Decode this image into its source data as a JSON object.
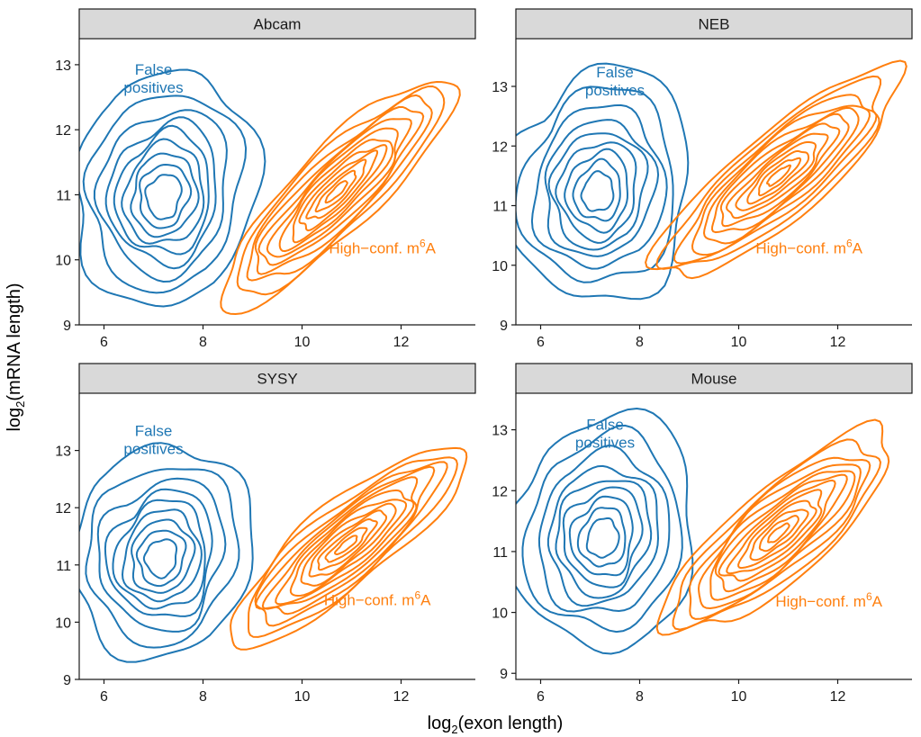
{
  "chart_data": {
    "type": "contour",
    "title": "",
    "xlabel_base": "log",
    "xlabel_sub": "2",
    "xlabel_rest": "(exon length)",
    "ylabel_base": "log",
    "ylabel_sub": "2",
    "ylabel_rest": "(mRNA length)",
    "colors": {
      "false_positives": "#1f77b4",
      "high_conf": "#ff7f0e"
    },
    "legend": {
      "placement": "in-panel annotations"
    },
    "panels": [
      {
        "name": "Abcam",
        "xlim": [
          5.5,
          13.5
        ],
        "ylim": [
          9,
          13.4
        ],
        "xticks": [
          6,
          8,
          10,
          12
        ],
        "yticks": [
          9,
          10,
          11,
          12,
          13
        ],
        "fp_label": [
          "False",
          "positives"
        ],
        "fp_label_pos": [
          7.0,
          12.85
        ],
        "hc_label": "High−conf. m",
        "hc_sup": "6",
        "hc_tail": "A",
        "hc_label_pos": [
          12.7,
          10.1
        ],
        "series": [
          {
            "name": "False positives",
            "color_key": "false_positives",
            "center": [
              7.2,
              10.95
            ],
            "sx": 1.0,
            "sy": 0.9,
            "rot": 0,
            "levels": [
              0.35,
              0.5,
              0.65,
              0.8,
              0.95,
              1.1,
              1.3,
              1.55,
              1.85
            ],
            "axis_angle": 0.6
          },
          {
            "name": "High-conf. m6A",
            "color_key": "high_conf",
            "center": [
              10.7,
              11.05
            ],
            "sx": 2.2,
            "sy": 0.55,
            "rot": 36,
            "levels": [
              0.12,
              0.22,
              0.32,
              0.42,
              0.52,
              0.62,
              0.72,
              0.82,
              0.92,
              1.02,
              1.15,
              1.3
            ]
          }
        ]
      },
      {
        "name": "NEB",
        "xlim": [
          5.5,
          13.5
        ],
        "ylim": [
          9,
          13.8
        ],
        "xticks": [
          6,
          8,
          10,
          12
        ],
        "yticks": [
          9,
          10,
          11,
          12,
          13
        ],
        "fp_label": [
          "False",
          "positives"
        ],
        "fp_label_pos": [
          7.5,
          13.15
        ],
        "hc_label": "High−conf. m",
        "hc_sup": "6",
        "hc_tail": "A",
        "hc_label_pos": [
          12.5,
          10.2
        ],
        "series": [
          {
            "name": "False positives",
            "color_key": "false_positives",
            "center": [
              7.15,
              11.2
            ],
            "sx": 1.05,
            "sy": 1.0,
            "rot": 0,
            "levels": [
              0.3,
              0.45,
              0.6,
              0.75,
              0.9,
              1.05,
              1.25,
              1.5,
              1.8
            ],
            "axis_angle": 0.7
          },
          {
            "name": "High-conf. m6A",
            "color_key": "high_conf",
            "center": [
              10.8,
              11.5
            ],
            "sx": 2.25,
            "sy": 0.6,
            "rot": 34,
            "levels": [
              0.12,
              0.22,
              0.32,
              0.42,
              0.52,
              0.62,
              0.72,
              0.82,
              0.92,
              1.02,
              1.15,
              1.3
            ]
          }
        ]
      },
      {
        "name": "SYSY",
        "xlim": [
          5.5,
          13.5
        ],
        "ylim": [
          9,
          14.0
        ],
        "xticks": [
          6,
          8,
          10,
          12
        ],
        "yticks": [
          9,
          10,
          11,
          12,
          13
        ],
        "fp_label": [
          "False",
          "positives"
        ],
        "fp_label_pos": [
          7.0,
          13.25
        ],
        "hc_label": "High−conf. m",
        "hc_sup": "6",
        "hc_tail": "A",
        "hc_label_pos": [
          12.6,
          10.3
        ],
        "series": [
          {
            "name": "False positives",
            "color_key": "false_positives",
            "center": [
              7.15,
              11.1
            ],
            "sx": 1.0,
            "sy": 0.95,
            "rot": 0,
            "levels": [
              0.32,
              0.47,
              0.62,
              0.77,
              0.92,
              1.07,
              1.27,
              1.52,
              1.82
            ],
            "axis_angle": 0.6
          },
          {
            "name": "High-conf. m6A",
            "color_key": "high_conf",
            "center": [
              10.9,
              11.35
            ],
            "sx": 2.2,
            "sy": 0.58,
            "rot": 35,
            "levels": [
              0.12,
              0.22,
              0.32,
              0.42,
              0.52,
              0.62,
              0.72,
              0.82,
              0.92,
              1.02,
              1.15,
              1.3
            ]
          }
        ]
      },
      {
        "name": "Mouse",
        "xlim": [
          5.5,
          13.5
        ],
        "ylim": [
          8.9,
          13.6
        ],
        "xticks": [
          6,
          8,
          10,
          12
        ],
        "yticks": [
          9,
          10,
          11,
          12,
          13
        ],
        "fp_label": [
          "False",
          "positives"
        ],
        "fp_label_pos": [
          7.3,
          13.0
        ],
        "hc_label": "High−conf. m",
        "hc_sup": "6",
        "hc_tail": "A",
        "hc_label_pos": [
          12.9,
          10.1
        ],
        "series": [
          {
            "name": "False positives",
            "color_key": "false_positives",
            "center": [
              7.25,
              11.2
            ],
            "sx": 1.05,
            "sy": 1.0,
            "rot": 0,
            "levels": [
              0.3,
              0.45,
              0.6,
              0.75,
              0.9,
              1.05,
              1.25,
              1.5,
              1.8
            ],
            "axis_angle": 0.5
          },
          {
            "name": "High-conf. m6A",
            "color_key": "high_conf",
            "center": [
              10.8,
              11.3
            ],
            "sx": 2.1,
            "sy": 0.62,
            "rot": 34,
            "levels": [
              0.12,
              0.22,
              0.32,
              0.42,
              0.52,
              0.62,
              0.72,
              0.82,
              0.92,
              1.02,
              1.15,
              1.3
            ]
          }
        ]
      }
    ]
  }
}
